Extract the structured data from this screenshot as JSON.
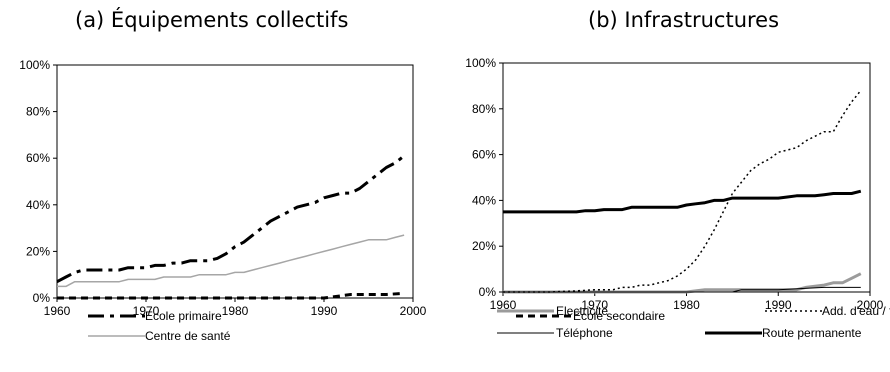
{
  "chart_data": [
    {
      "type": "line",
      "title": "(a) Équipements collectifs",
      "xlabel": "",
      "ylabel": "",
      "xlim": [
        1960,
        2000
      ],
      "ylim": [
        0,
        100
      ],
      "x_ticks": [
        "1960",
        "1970",
        "1980",
        "1990",
        "2000"
      ],
      "y_ticks": [
        "0%",
        "20%",
        "40%",
        "60%",
        "80%",
        "100%"
      ],
      "grid": false,
      "legend_position": "bottom",
      "series": [
        {
          "name": "Ecole primaire",
          "style": "dash-dot",
          "color": "#000000",
          "width": 3,
          "x": [
            1960,
            1961,
            1962,
            1963,
            1964,
            1965,
            1966,
            1967,
            1968,
            1969,
            1970,
            1971,
            1972,
            1973,
            1974,
            1975,
            1976,
            1977,
            1978,
            1979,
            1980,
            1981,
            1982,
            1983,
            1984,
            1985,
            1986,
            1987,
            1988,
            1989,
            1990,
            1991,
            1992,
            1993,
            1994,
            1995,
            1996,
            1997,
            1998,
            1999
          ],
          "values": [
            7,
            9,
            11,
            12,
            12,
            12,
            12,
            12,
            13,
            13,
            13,
            14,
            14,
            15,
            15,
            16,
            16,
            16,
            17,
            19,
            22,
            24,
            27,
            30,
            33,
            35,
            37,
            39,
            40,
            41,
            43,
            44,
            45,
            45,
            47,
            50,
            53,
            56,
            58,
            61
          ]
        },
        {
          "name": "Ecole secondaire",
          "style": "dash",
          "color": "#000000",
          "width": 3,
          "x": [
            1960,
            1962,
            1965,
            1970,
            1975,
            1980,
            1985,
            1990,
            1992,
            1993,
            1995,
            1997,
            1999
          ],
          "values": [
            0,
            0,
            0,
            0,
            0,
            0,
            0,
            0,
            1,
            1.5,
            1.5,
            1.5,
            2
          ]
        },
        {
          "name": "Centre de santé",
          "style": "solid",
          "color": "#a6a6a6",
          "width": 1.5,
          "x": [
            1960,
            1961,
            1962,
            1963,
            1964,
            1965,
            1966,
            1967,
            1968,
            1969,
            1970,
            1971,
            1972,
            1973,
            1974,
            1975,
            1976,
            1977,
            1978,
            1979,
            1980,
            1981,
            1982,
            1983,
            1984,
            1985,
            1986,
            1987,
            1988,
            1989,
            1990,
            1991,
            1992,
            1993,
            1994,
            1995,
            1996,
            1997,
            1998,
            1999
          ],
          "values": [
            5,
            5,
            7,
            7,
            7,
            7,
            7,
            7,
            8,
            8,
            8,
            8,
            9,
            9,
            9,
            9,
            10,
            10,
            10,
            10,
            11,
            11,
            12,
            13,
            14,
            15,
            16,
            17,
            18,
            19,
            20,
            21,
            22,
            23,
            24,
            25,
            25,
            25,
            26,
            27
          ]
        }
      ]
    },
    {
      "type": "line",
      "title": "(b) Infrastructures",
      "xlabel": "",
      "ylabel": "",
      "xlim": [
        1960,
        2000
      ],
      "ylim": [
        0,
        100
      ],
      "x_ticks": [
        "1960",
        "1970",
        "1980",
        "1990",
        "2000"
      ],
      "y_ticks": [
        "0%",
        "20%",
        "40%",
        "60%",
        "80%",
        "100%"
      ],
      "grid": false,
      "legend_position": "bottom",
      "series": [
        {
          "name": "Electricité",
          "style": "solid",
          "color": "#9b9b9b",
          "width": 3,
          "x": [
            1960,
            1970,
            1978,
            1979,
            1980,
            1982,
            1985,
            1988,
            1990,
            1992,
            1993,
            1995,
            1996,
            1997,
            1998,
            1999
          ],
          "values": [
            0,
            0,
            0,
            0,
            0,
            1,
            1,
            1,
            1,
            1,
            2,
            3,
            4,
            4,
            6,
            8
          ]
        },
        {
          "name": "Add. d'eau / forage",
          "style": "dot",
          "color": "#000000",
          "width": 1.5,
          "x": [
            1960,
            1965,
            1968,
            1970,
            1972,
            1973,
            1974,
            1975,
            1976,
            1977,
            1978,
            1979,
            1980,
            1981,
            1982,
            1983,
            1984,
            1985,
            1986,
            1987,
            1988,
            1989,
            1990,
            1991,
            1992,
            1993,
            1994,
            1995,
            1996,
            1997,
            1998,
            1999
          ],
          "values": [
            0,
            0,
            0.5,
            1,
            1,
            2,
            2,
            3,
            3,
            4,
            5,
            7,
            10,
            14,
            20,
            27,
            35,
            43,
            48,
            53,
            56,
            58,
            61,
            62,
            63,
            66,
            68,
            70,
            70,
            77,
            83,
            88
          ]
        },
        {
          "name": "Téléphone",
          "style": "solid",
          "color": "#000000",
          "width": 1,
          "x": [
            1960,
            1970,
            1980,
            1985,
            1986,
            1990,
            1995,
            1999
          ],
          "values": [
            0,
            0,
            0,
            0,
            1,
            1,
            2,
            2
          ]
        },
        {
          "name": "Route permanente",
          "style": "solid",
          "color": "#000000",
          "width": 3,
          "x": [
            1960,
            1962,
            1964,
            1966,
            1968,
            1969,
            1970,
            1971,
            1972,
            1973,
            1974,
            1975,
            1976,
            1977,
            1978,
            1979,
            1980,
            1981,
            1982,
            1983,
            1984,
            1985,
            1986,
            1987,
            1988,
            1989,
            1990,
            1991,
            1992,
            1993,
            1994,
            1995,
            1996,
            1997,
            1998,
            1999
          ],
          "values": [
            35,
            35,
            35,
            35,
            35,
            35.5,
            35.5,
            36,
            36,
            36,
            37,
            37,
            37,
            37,
            37,
            37,
            38,
            38.5,
            39,
            40,
            40,
            41,
            41,
            41,
            41,
            41,
            41,
            41.5,
            42,
            42,
            42,
            42.5,
            43,
            43,
            43,
            44
          ]
        }
      ]
    }
  ]
}
